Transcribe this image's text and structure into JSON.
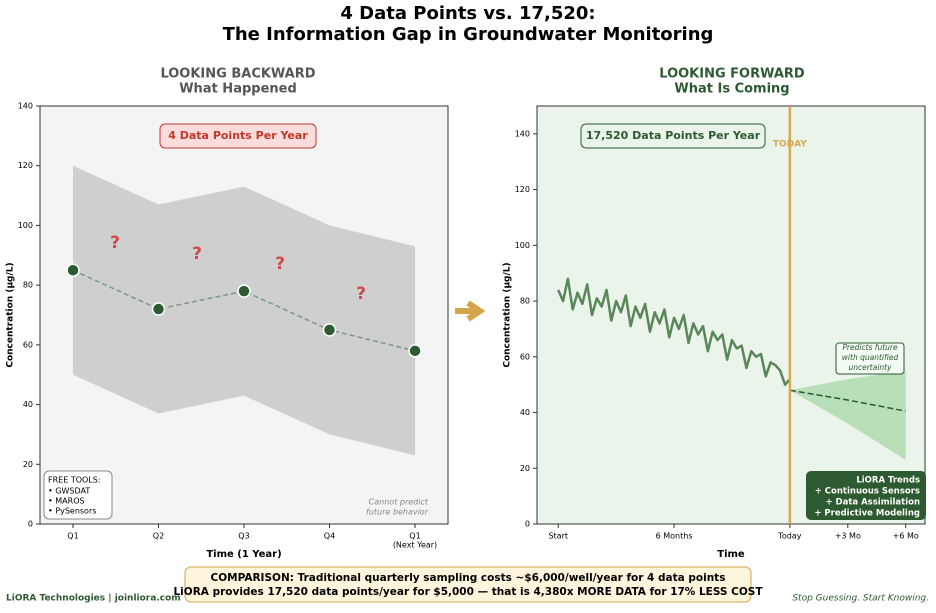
{
  "title_lines": [
    "4 Data Points vs. 17,520:",
    "The Information Gap in Groundwater Monitoring"
  ],
  "chart_data": [
    {
      "type": "line",
      "heading": "LOOKING BACKWARD",
      "subheading": "What Happened",
      "categories": [
        "Q1",
        "Q2",
        "Q3",
        "Q4",
        "Q1"
      ],
      "x_sublabels": [
        null,
        null,
        null,
        null,
        "(Next Year)"
      ],
      "values": [
        85,
        72,
        78,
        65,
        58
      ],
      "band_upper": [
        120,
        107,
        113,
        100,
        93
      ],
      "band_lower": [
        50,
        37,
        43,
        30,
        23
      ],
      "ylim": [
        0,
        140
      ],
      "yticks": [
        0,
        20,
        40,
        60,
        80,
        100,
        120,
        140
      ],
      "xlabel": "Time (1 Year)",
      "ylabel": "Concentration (µg/L)",
      "color": "#2d5a30",
      "line_color": "#7a9a80",
      "band_color": "#c8c8c8",
      "background": "#f4f4f4",
      "badge": "4 Data Points Per Year",
      "question_marks": [
        "?",
        "?",
        "?",
        "?"
      ],
      "note_lines": [
        "Cannot predict",
        "future behavior"
      ],
      "tools_title": "FREE TOOLS:",
      "tools": [
        "• GWSDAT",
        "• MAROS",
        "• PySensors"
      ]
    },
    {
      "type": "line",
      "heading": "LOOKING FORWARD",
      "subheading": "What Is Coming",
      "x": [
        0,
        0.25,
        0.5,
        0.75,
        1,
        1.25,
        1.5,
        1.75,
        2,
        2.25,
        2.5,
        2.75,
        3,
        3.25,
        3.5,
        3.75,
        4,
        4.25,
        4.5,
        4.75,
        5,
        5.25,
        5.5,
        5.75,
        6,
        6.25,
        6.5,
        6.75,
        7,
        7.25,
        7.5,
        7.75,
        8,
        8.25,
        8.5,
        8.75,
        9,
        9.25,
        9.5,
        9.75,
        10,
        10.25,
        10.5,
        10.75,
        11,
        11.25,
        11.5,
        11.75,
        12
      ],
      "values": [
        84,
        80,
        88,
        77,
        83,
        79,
        86,
        75,
        81,
        78,
        84,
        73,
        80,
        76,
        82,
        71,
        78,
        74,
        79,
        69,
        76,
        72,
        77,
        67,
        74,
        70,
        75,
        65,
        72,
        68,
        71,
        62,
        69,
        66,
        68,
        59,
        66,
        63,
        64,
        56,
        62,
        60,
        61,
        53,
        58,
        57,
        55,
        50,
        52
      ],
      "forecast": {
        "x": [
          12,
          15,
          18
        ],
        "values": [
          48,
          44.5,
          40.5
        ],
        "upper": [
          48,
          52,
          55
        ],
        "lower": [
          48,
          36,
          23
        ]
      },
      "today": {
        "value": 12,
        "label": "TODAY"
      },
      "xlim": [
        -1.1,
        19
      ],
      "ylim": [
        0,
        150
      ],
      "yticks": [
        0,
        20,
        40,
        60,
        80,
        100,
        120,
        140
      ],
      "xticks": [
        {
          "value": 0,
          "label": "Start"
        },
        {
          "value": 6,
          "label": "6 Months"
        },
        {
          "value": 12,
          "label": "Today"
        },
        {
          "value": 15,
          "label": "+3 Mo"
        },
        {
          "value": 18,
          "label": "+6 Mo"
        }
      ],
      "xlabel": "Time",
      "ylabel": "Concentration (µg/L)",
      "color": "#4a7a4a",
      "forecast_color": "#a8d8a8",
      "today_color": "#d4a855",
      "background": "#eaf4ea",
      "badge": "17,520 Data Points Per Year",
      "note_lines": [
        "Predicts future",
        "with quantified",
        "uncertainty"
      ],
      "box_lines": [
        "LiORA Trends",
        "+ Continuous Sensors",
        "+ Data Assimilation",
        "+ Predictive Modeling"
      ]
    }
  ],
  "footer": {
    "brand": "LiORA Technologies | joinliora.com",
    "comparison": [
      "COMPARISON: Traditional quarterly sampling costs ~$6,000/well/year for 4 data points",
      "LiORA provides 17,520 data points/year for $5,000 — that is 4,380x MORE DATA for 17% LESS COST"
    ],
    "tagline": "Stop Guessing. Start Knowing."
  }
}
